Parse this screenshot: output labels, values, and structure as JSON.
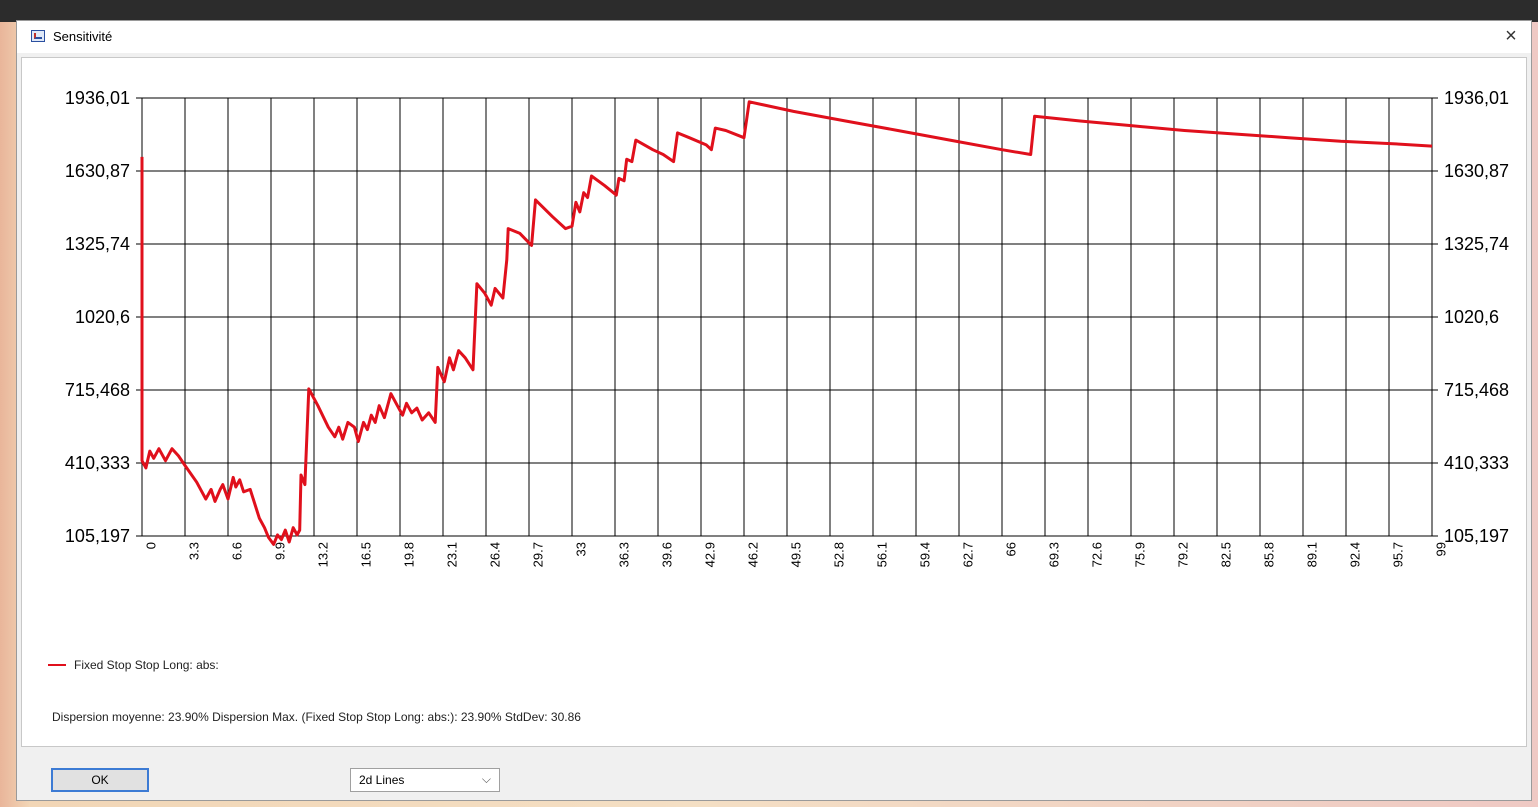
{
  "window": {
    "title": "Sensitivité",
    "close_glyph": "×"
  },
  "legend": {
    "label": "Fixed Stop Stop Long: abs:",
    "color": "#e0101c"
  },
  "stats": {
    "text": "Dispersion moyenne: 23.90%  Dispersion Max. (Fixed Stop Stop Long: abs:): 23.90%  StdDev: 30.86"
  },
  "buttons": {
    "ok_label": "OK"
  },
  "chart_type_select": {
    "value": "2d Lines",
    "arrow": "⌵"
  },
  "chart_data": {
    "type": "line",
    "y_ticks": [
      "1936,01",
      "1630,87",
      "1325,74",
      "1020,6",
      "715,468",
      "410,333",
      "105,197"
    ],
    "y_tick_values": [
      1936.01,
      1630.87,
      1325.74,
      1020.6,
      715.468,
      410.333,
      105.197
    ],
    "ylim": [
      105.197,
      1936.01
    ],
    "x_ticks": [
      "0",
      "3.3",
      "6.6",
      "9.9",
      "13.2",
      "16.5",
      "19.8",
      "23.1",
      "26.4",
      "29.7",
      "33",
      "36.3",
      "39.6",
      "42.9",
      "46.2",
      "49.5",
      "52.8",
      "56.1",
      "59.4",
      "62.7",
      "66",
      "69.3",
      "72.6",
      "75.9",
      "79.2",
      "82.5",
      "85.8",
      "89.1",
      "92.4",
      "95.7",
      "99"
    ],
    "xlim": [
      0,
      99
    ],
    "grid": true,
    "series": [
      {
        "name": "Fixed Stop Stop Long: abs:",
        "color": "#e0101c",
        "points": [
          [
            0,
            1690
          ],
          [
            0,
            420
          ],
          [
            0.3,
            390
          ],
          [
            0.6,
            460
          ],
          [
            0.9,
            430
          ],
          [
            1.3,
            470
          ],
          [
            1.8,
            420
          ],
          [
            2.3,
            470
          ],
          [
            2.8,
            440
          ],
          [
            3.3,
            400
          ],
          [
            4.2,
            330
          ],
          [
            4.6,
            290
          ],
          [
            4.9,
            260
          ],
          [
            5.3,
            300
          ],
          [
            5.6,
            250
          ],
          [
            6.0,
            300
          ],
          [
            6.2,
            320
          ],
          [
            6.6,
            260
          ],
          [
            7.0,
            350
          ],
          [
            7.2,
            310
          ],
          [
            7.5,
            340
          ],
          [
            7.8,
            290
          ],
          [
            8.3,
            300
          ],
          [
            9.0,
            180
          ],
          [
            9.4,
            140
          ],
          [
            9.7,
            100
          ],
          [
            10.1,
            70
          ],
          [
            10.4,
            110
          ],
          [
            10.7,
            90
          ],
          [
            11.0,
            130
          ],
          [
            11.3,
            80
          ],
          [
            11.6,
            140
          ],
          [
            11.9,
            110
          ],
          [
            12.1,
            130
          ],
          [
            12.2,
            360
          ],
          [
            12.5,
            320
          ],
          [
            12.8,
            720
          ],
          [
            13.5,
            650
          ],
          [
            14.3,
            560
          ],
          [
            14.8,
            520
          ],
          [
            15.1,
            560
          ],
          [
            15.4,
            510
          ],
          [
            15.8,
            580
          ],
          [
            16.3,
            560
          ],
          [
            16.6,
            500
          ],
          [
            17.0,
            580
          ],
          [
            17.3,
            550
          ],
          [
            17.6,
            610
          ],
          [
            17.9,
            580
          ],
          [
            18.2,
            650
          ],
          [
            18.6,
            600
          ],
          [
            19.1,
            700
          ],
          [
            19.6,
            650
          ],
          [
            20.0,
            610
          ],
          [
            20.3,
            660
          ],
          [
            20.7,
            620
          ],
          [
            21.1,
            640
          ],
          [
            21.5,
            590
          ],
          [
            22.0,
            620
          ],
          [
            22.5,
            580
          ],
          [
            22.7,
            810
          ],
          [
            23.2,
            750
          ],
          [
            23.6,
            850
          ],
          [
            23.9,
            800
          ],
          [
            24.3,
            880
          ],
          [
            24.8,
            850
          ],
          [
            25.4,
            800
          ],
          [
            25.7,
            1160
          ],
          [
            26.3,
            1120
          ],
          [
            26.8,
            1070
          ],
          [
            27.1,
            1140
          ],
          [
            27.7,
            1100
          ],
          [
            28.0,
            1260
          ],
          [
            28.1,
            1390
          ],
          [
            29.0,
            1370
          ],
          [
            29.9,
            1320
          ],
          [
            30.2,
            1510
          ],
          [
            31.5,
            1440
          ],
          [
            32.5,
            1390
          ],
          [
            33.0,
            1400
          ],
          [
            33.3,
            1500
          ],
          [
            33.6,
            1460
          ],
          [
            33.9,
            1540
          ],
          [
            34.2,
            1520
          ],
          [
            34.5,
            1610
          ],
          [
            35.5,
            1570
          ],
          [
            36.4,
            1530
          ],
          [
            36.6,
            1600
          ],
          [
            37.0,
            1590
          ],
          [
            37.2,
            1680
          ],
          [
            37.6,
            1670
          ],
          [
            37.9,
            1760
          ],
          [
            39.2,
            1720
          ],
          [
            40.0,
            1700
          ],
          [
            40.8,
            1670
          ],
          [
            41.1,
            1790
          ],
          [
            42.0,
            1770
          ],
          [
            43.3,
            1740
          ],
          [
            43.7,
            1720
          ],
          [
            44.0,
            1810
          ],
          [
            44.8,
            1800
          ],
          [
            46.2,
            1770
          ],
          [
            46.6,
            1920
          ],
          [
            50,
            1880
          ],
          [
            54,
            1840
          ],
          [
            58,
            1800
          ],
          [
            62,
            1760
          ],
          [
            66,
            1720
          ],
          [
            68.2,
            1700
          ],
          [
            68.5,
            1860
          ],
          [
            72,
            1840
          ],
          [
            76,
            1820
          ],
          [
            80,
            1800
          ],
          [
            84,
            1785
          ],
          [
            88,
            1770
          ],
          [
            92,
            1755
          ],
          [
            96,
            1745
          ],
          [
            99,
            1735
          ]
        ]
      }
    ]
  }
}
